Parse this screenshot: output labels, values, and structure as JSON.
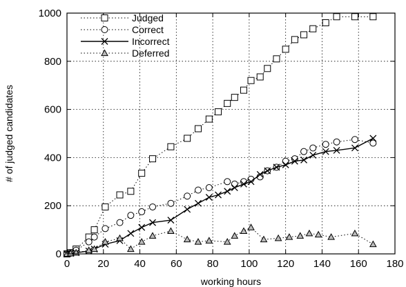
{
  "chart_data": {
    "type": "line",
    "title": "",
    "xlabel": "working hours",
    "ylabel": "# of judged candidates",
    "xlim": [
      0,
      180
    ],
    "ylim": [
      0,
      1000
    ],
    "x_ticks": [
      "0",
      "20",
      "40",
      "60",
      "80",
      "100",
      "120",
      "140",
      "160",
      "180"
    ],
    "y_ticks": [
      "0",
      "200",
      "400",
      "600",
      "800",
      "1000"
    ],
    "grid": true,
    "legend_position": "top-left",
    "series": [
      {
        "name": "Judged",
        "marker": "square",
        "line": "dotted",
        "color": "#000000",
        "x": [
          0,
          2,
          5,
          12,
          15,
          21,
          29,
          35,
          41,
          47,
          57,
          66,
          72,
          78,
          83,
          88,
          92,
          97,
          101,
          106,
          110,
          115,
          120,
          125,
          130,
          135,
          142,
          148,
          158,
          168
        ],
        "y": [
          0,
          5,
          20,
          70,
          100,
          195,
          245,
          260,
          335,
          395,
          445,
          480,
          520,
          560,
          590,
          625,
          650,
          680,
          720,
          735,
          770,
          810,
          850,
          890,
          910,
          935,
          960,
          985,
          985,
          985
        ]
      },
      {
        "name": "Correct",
        "marker": "circle",
        "line": "dotted",
        "color": "#000000",
        "x": [
          0,
          2,
          5,
          12,
          15,
          21,
          29,
          35,
          41,
          47,
          57,
          66,
          72,
          78,
          88,
          92,
          97,
          101,
          106,
          110,
          115,
          120,
          125,
          130,
          135,
          142,
          148,
          158,
          168
        ],
        "y": [
          0,
          3,
          15,
          50,
          70,
          105,
          130,
          160,
          175,
          195,
          210,
          240,
          265,
          275,
          300,
          290,
          300,
          310,
          320,
          345,
          360,
          385,
          395,
          425,
          440,
          455,
          465,
          475,
          460
        ]
      },
      {
        "name": "Incorrect",
        "marker": "x",
        "line": "solid",
        "color": "#000000",
        "x": [
          0,
          2,
          5,
          12,
          15,
          21,
          29,
          35,
          41,
          47,
          57,
          66,
          72,
          78,
          83,
          88,
          92,
          97,
          101,
          106,
          110,
          115,
          120,
          125,
          130,
          135,
          142,
          148,
          158,
          168
        ],
        "y": [
          0,
          2,
          5,
          12,
          20,
          40,
          55,
          85,
          110,
          130,
          140,
          185,
          210,
          235,
          245,
          260,
          275,
          290,
          300,
          330,
          345,
          360,
          370,
          385,
          390,
          410,
          425,
          430,
          440,
          480
        ]
      },
      {
        "name": "Deferred",
        "marker": "triangle",
        "line": "dotted",
        "color": "#000000",
        "x": [
          0,
          2,
          5,
          12,
          15,
          21,
          29,
          35,
          41,
          47,
          57,
          66,
          72,
          78,
          88,
          92,
          97,
          101,
          108,
          116,
          122,
          128,
          133,
          138,
          145,
          158,
          168
        ],
        "y": [
          0,
          2,
          5,
          15,
          20,
          50,
          65,
          20,
          50,
          75,
          95,
          60,
          50,
          55,
          50,
          75,
          95,
          110,
          60,
          65,
          70,
          75,
          85,
          80,
          70,
          85,
          40
        ]
      }
    ]
  }
}
